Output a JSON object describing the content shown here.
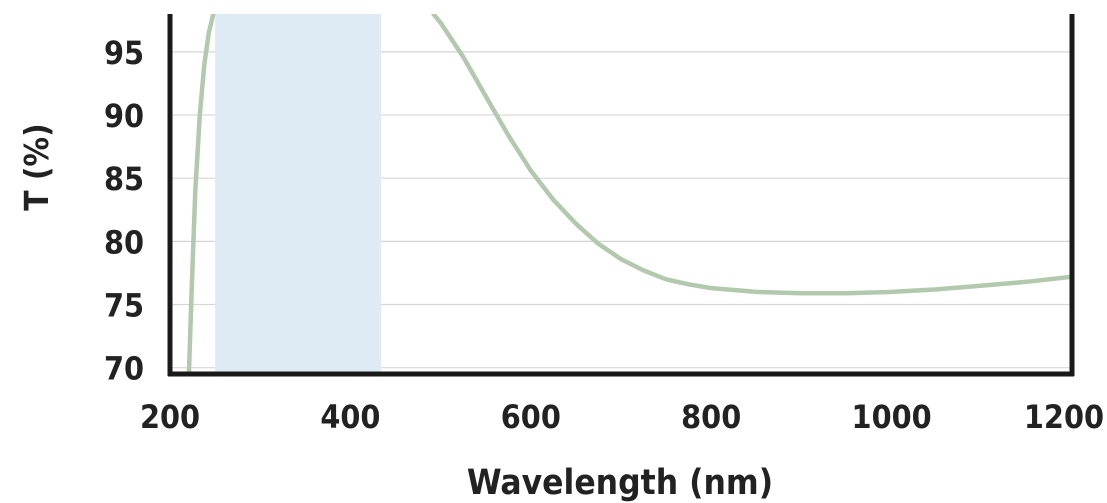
{
  "chart_data": {
    "type": "line",
    "title": "",
    "xlabel": "Wavelength (nm)",
    "ylabel": "T (%)",
    "xlim": [
      200,
      1200
    ],
    "ylim": [
      69.5,
      98
    ],
    "x_ticks": [
      200,
      400,
      600,
      800,
      1000,
      1200
    ],
    "y_ticks": [
      70,
      75,
      80,
      85,
      90,
      95
    ],
    "x_tick_labels": [
      "200",
      "400",
      "600",
      "800",
      "1000",
      "1200"
    ],
    "y_tick_labels": [
      "70",
      "75",
      "80",
      "85",
      "90",
      95
    ],
    "grid": "horizontal",
    "highlight_band": {
      "x_start": 250,
      "x_end": 434,
      "color": "#deebf5"
    },
    "line_color": "#b2c9ae",
    "series": [
      {
        "name": "",
        "points": [
          [
            221,
            69.5
          ],
          [
            224,
            76
          ],
          [
            228,
            84
          ],
          [
            233,
            90
          ],
          [
            238,
            94
          ],
          [
            243,
            96.5
          ],
          [
            248,
            98
          ],
          [
            492,
            98
          ],
          [
            500,
            97.3
          ],
          [
            525,
            94.6
          ],
          [
            550,
            91.5
          ],
          [
            575,
            88.4
          ],
          [
            600,
            85.6
          ],
          [
            625,
            83.3
          ],
          [
            650,
            81.4
          ],
          [
            675,
            79.8
          ],
          [
            700,
            78.6
          ],
          [
            725,
            77.7
          ],
          [
            750,
            77.0
          ],
          [
            775,
            76.6
          ],
          [
            800,
            76.3
          ],
          [
            850,
            76.0
          ],
          [
            900,
            75.9
          ],
          [
            950,
            75.9
          ],
          [
            1000,
            76.0
          ],
          [
            1050,
            76.2
          ],
          [
            1100,
            76.5
          ],
          [
            1150,
            76.8
          ],
          [
            1200,
            77.2
          ]
        ]
      }
    ]
  }
}
